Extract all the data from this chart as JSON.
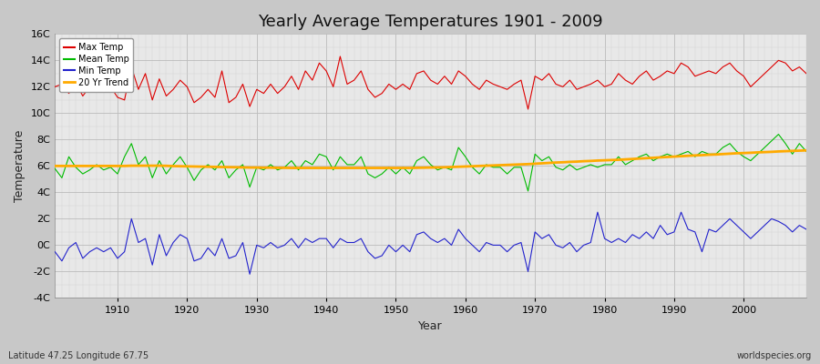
{
  "title": "Yearly Average Temperatures 1901 - 2009",
  "xlabel": "Year",
  "ylabel": "Temperature",
  "subtitle_left": "Latitude 47.25 Longitude 67.75",
  "subtitle_right": "worldspecies.org",
  "year_start": 1901,
  "year_end": 2009,
  "yticks": [
    -4,
    -2,
    0,
    2,
    4,
    6,
    8,
    10,
    12,
    14,
    16
  ],
  "ytick_labels": [
    "-4C",
    "-2C",
    "0C",
    "2C",
    "4C",
    "6C",
    "8C",
    "10C",
    "12C",
    "14C",
    "16C"
  ],
  "legend_labels": [
    "Max Temp",
    "Mean Temp",
    "Min Temp",
    "20 Yr Trend"
  ],
  "colors": {
    "max": "#dd0000",
    "mean": "#00bb00",
    "min": "#2222cc",
    "trend": "#ffaa00",
    "fig_bg": "#c8c8c8",
    "plot_bg": "#e8e8e8",
    "grid_major": "#bbbbbb",
    "grid_minor": "#d4d4d4"
  },
  "max_temp": [
    12.0,
    12.2,
    11.5,
    12.3,
    11.3,
    12.0,
    12.2,
    11.8,
    12.0,
    11.2,
    11.0,
    13.5,
    11.8,
    13.0,
    11.0,
    12.6,
    11.3,
    11.8,
    12.5,
    12.0,
    10.8,
    11.2,
    11.8,
    11.2,
    13.2,
    10.8,
    11.2,
    12.2,
    10.5,
    11.8,
    11.5,
    12.2,
    11.5,
    12.0,
    12.8,
    11.8,
    13.2,
    12.5,
    13.8,
    13.2,
    12.0,
    14.3,
    12.2,
    12.5,
    13.2,
    11.8,
    11.2,
    11.5,
    12.2,
    11.8,
    12.2,
    11.8,
    13.0,
    13.2,
    12.5,
    12.2,
    12.8,
    12.2,
    13.2,
    12.8,
    12.2,
    11.8,
    12.5,
    12.2,
    12.0,
    11.8,
    12.2,
    12.5,
    10.3,
    12.8,
    12.5,
    13.0,
    12.2,
    12.0,
    12.5,
    11.8,
    12.0,
    12.2,
    12.5,
    12.0,
    12.2,
    13.0,
    12.5,
    12.2,
    12.8,
    13.2,
    12.5,
    12.8,
    13.2,
    13.0,
    13.8,
    13.5,
    12.8,
    13.0,
    13.2,
    13.0,
    13.5,
    13.8,
    13.2,
    12.8,
    12.0,
    12.5,
    13.0,
    13.5,
    14.0,
    13.8,
    13.2,
    13.5,
    13.0
  ],
  "mean_temp": [
    5.8,
    5.1,
    6.7,
    5.9,
    5.4,
    5.7,
    6.1,
    5.7,
    5.9,
    5.4,
    6.7,
    7.7,
    6.1,
    6.7,
    5.1,
    6.4,
    5.4,
    6.1,
    6.7,
    5.9,
    4.9,
    5.7,
    6.1,
    5.7,
    6.4,
    5.1,
    5.7,
    6.1,
    4.4,
    5.9,
    5.7,
    6.1,
    5.7,
    5.9,
    6.4,
    5.7,
    6.4,
    6.1,
    6.9,
    6.7,
    5.7,
    6.7,
    6.1,
    6.1,
    6.7,
    5.4,
    5.1,
    5.4,
    5.9,
    5.4,
    5.9,
    5.4,
    6.4,
    6.7,
    6.1,
    5.7,
    5.9,
    5.7,
    7.4,
    6.7,
    5.9,
    5.4,
    6.1,
    5.9,
    5.9,
    5.4,
    5.9,
    5.9,
    4.1,
    6.9,
    6.4,
    6.7,
    5.9,
    5.7,
    6.1,
    5.7,
    5.9,
    6.1,
    5.9,
    6.1,
    6.1,
    6.7,
    6.1,
    6.4,
    6.7,
    6.9,
    6.4,
    6.7,
    6.9,
    6.7,
    6.9,
    7.1,
    6.7,
    7.1,
    6.9,
    6.9,
    7.4,
    7.7,
    7.1,
    6.7,
    6.4,
    6.9,
    7.4,
    7.9,
    8.4,
    7.7,
    6.9,
    7.7,
    7.1
  ],
  "min_temp": [
    -0.5,
    -1.2,
    -0.2,
    0.2,
    -1.0,
    -0.5,
    -0.2,
    -0.5,
    -0.2,
    -1.0,
    -0.5,
    2.0,
    0.2,
    0.5,
    -1.5,
    0.8,
    -0.8,
    0.2,
    0.8,
    0.5,
    -1.2,
    -1.0,
    -0.2,
    -0.8,
    0.5,
    -1.0,
    -0.8,
    0.2,
    -2.2,
    0.0,
    -0.2,
    0.2,
    -0.2,
    0.0,
    0.5,
    -0.2,
    0.5,
    0.2,
    0.5,
    0.5,
    -0.2,
    0.5,
    0.2,
    0.2,
    0.5,
    -0.5,
    -1.0,
    -0.8,
    0.0,
    -0.5,
    0.0,
    -0.5,
    0.8,
    1.0,
    0.5,
    0.2,
    0.5,
    0.0,
    1.2,
    0.5,
    0.0,
    -0.5,
    0.2,
    0.0,
    0.0,
    -0.5,
    0.0,
    0.2,
    -2.0,
    1.0,
    0.5,
    0.8,
    0.0,
    -0.2,
    0.2,
    -0.5,
    0.0,
    0.2,
    2.5,
    0.5,
    0.2,
    0.5,
    0.2,
    0.8,
    0.5,
    1.0,
    0.5,
    1.5,
    0.8,
    1.0,
    2.5,
    1.2,
    1.0,
    -0.5,
    1.2,
    1.0,
    1.5,
    2.0,
    1.5,
    1.0,
    0.5,
    1.0,
    1.5,
    2.0,
    1.8,
    1.5,
    1.0,
    1.5,
    1.2
  ],
  "trend_temp": [
    6.0,
    6.0,
    6.0,
    6.0,
    6.0,
    6.0,
    6.0,
    6.0,
    6.0,
    6.0,
    6.0,
    6.02,
    6.02,
    6.02,
    6.02,
    6.02,
    6.01,
    5.99,
    5.98,
    5.97,
    5.96,
    5.95,
    5.94,
    5.93,
    5.92,
    5.91,
    5.9,
    5.89,
    5.88,
    5.88,
    5.87,
    5.87,
    5.86,
    5.86,
    5.85,
    5.85,
    5.85,
    5.85,
    5.85,
    5.85,
    5.85,
    5.85,
    5.85,
    5.85,
    5.85,
    5.85,
    5.85,
    5.85,
    5.85,
    5.85,
    5.85,
    5.85,
    5.86,
    5.87,
    5.88,
    5.89,
    5.9,
    5.92,
    5.94,
    5.96,
    5.98,
    6.0,
    6.02,
    6.04,
    6.06,
    6.08,
    6.1,
    6.12,
    6.14,
    6.17,
    6.2,
    6.23,
    6.26,
    6.28,
    6.31,
    6.33,
    6.36,
    6.38,
    6.41,
    6.43,
    6.45,
    6.47,
    6.5,
    6.53,
    6.56,
    6.59,
    6.62,
    6.65,
    6.68,
    6.71,
    6.74,
    6.77,
    6.8,
    6.82,
    6.85,
    6.87,
    6.9,
    6.93,
    6.96,
    6.98,
    7.0,
    7.03,
    7.05,
    7.07,
    7.1,
    7.12,
    7.14,
    7.16,
    7.18
  ]
}
